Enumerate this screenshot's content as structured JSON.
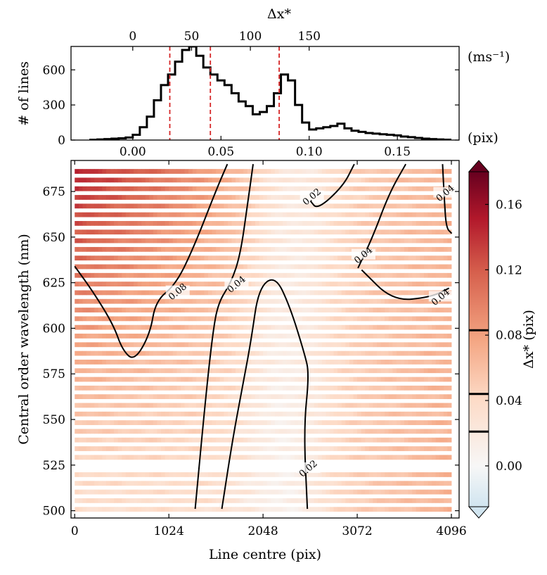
{
  "chart_data": [
    {
      "type": "histogram",
      "name": "line-offset-histogram",
      "xlabel_bottom": "(pix)",
      "xlabel_top": "Δx*",
      "top_unit": "(ms⁻¹)",
      "ylabel": "# of lines",
      "xlim": [
        -0.035,
        0.185
      ],
      "ylim": [
        0,
        800
      ],
      "yticks": [
        0,
        300,
        600
      ],
      "xticks": [
        0.0,
        0.05,
        0.1,
        0.15
      ],
      "xtick_labels": [
        "0.00",
        "0.05",
        "0.10",
        "0.15"
      ],
      "top_ticks_ms": [
        0,
        50,
        100,
        150
      ],
      "ms_per_pix": 1500,
      "bin_width": 0.004,
      "bin_start": -0.024,
      "counts": [
        2,
        5,
        8,
        12,
        15,
        22,
        45,
        110,
        200,
        340,
        470,
        560,
        670,
        770,
        800,
        720,
        620,
        560,
        510,
        470,
        400,
        330,
        290,
        220,
        240,
        290,
        400,
        560,
        510,
        300,
        150,
        90,
        100,
        110,
        120,
        140,
        100,
        80,
        70,
        60,
        55,
        50,
        45,
        40,
        30,
        25,
        18,
        12,
        8,
        5,
        3
      ],
      "vlines": [
        0.021,
        0.044,
        0.083
      ]
    },
    {
      "type": "heatmap",
      "name": "offset-map",
      "xlabel": "Line centre (pix)",
      "ylabel": "Central order wavelength (nm)",
      "xlim": [
        -40,
        4180
      ],
      "ylim": [
        496,
        692
      ],
      "xticks": [
        0,
        1024,
        2048,
        3072,
        4096
      ],
      "yticks": [
        500,
        525,
        550,
        575,
        600,
        625,
        650,
        675
      ],
      "contours": [
        {
          "label": "0.08",
          "label_at": [
            1120,
            620
          ],
          "points": [
            [
              0,
              634
            ],
            [
              200,
              620
            ],
            [
              420,
              602
            ],
            [
              520,
              588
            ],
            [
              650,
              582
            ],
            [
              820,
              597
            ],
            [
              880,
              615
            ],
            [
              1100,
              624
            ],
            [
              1300,
              645
            ],
            [
              1540,
              676
            ],
            [
              1660,
              690
            ]
          ]
        },
        {
          "label": "0.04",
          "label_at": [
            1760,
            624
          ],
          "points": [
            [
              1310,
              501
            ],
            [
              1420,
              560
            ],
            [
              1500,
              597
            ],
            [
              1560,
              614
            ],
            [
              1700,
              625
            ],
            [
              1800,
              640
            ],
            [
              1880,
              668
            ],
            [
              1940,
              690
            ]
          ]
        },
        {
          "label": "0.02",
          "label_at": [
            2540,
            523
          ],
          "points": [
            [
              1600,
              501
            ],
            [
              1720,
              540
            ],
            [
              1840,
              572
            ],
            [
              1920,
              594
            ],
            [
              2000,
              622
            ],
            [
              2180,
              629
            ],
            [
              2340,
              612
            ],
            [
              2500,
              586
            ],
            [
              2550,
              575
            ],
            [
              2490,
              545
            ],
            [
              2530,
              501
            ]
          ]
        },
        {
          "label": "0.02",
          "label_at": [
            2580,
            672
          ],
          "points": [
            [
              2560,
              670
            ],
            [
              2640,
              665
            ],
            [
              2920,
              678
            ],
            [
              3040,
              690
            ]
          ]
        },
        {
          "label": "0.04",
          "label_at": [
            3980,
            617
          ],
          "points": [
            [
              3120,
              632
            ],
            [
              3460,
              615
            ],
            [
              3870,
              617
            ],
            [
              4070,
              622
            ]
          ]
        },
        {
          "label": "0.04",
          "label_at": [
            3140,
            640
          ],
          "points": [
            [
              3080,
              633
            ],
            [
              3240,
              650
            ],
            [
              3420,
              674
            ],
            [
              3600,
              690
            ]
          ]
        },
        {
          "label": "0.04",
          "label_at": [
            4030,
            674
          ],
          "points": [
            [
              4000,
              690
            ],
            [
              4020,
              670
            ],
            [
              4040,
              655
            ],
            [
              4100,
              652
            ]
          ]
        }
      ],
      "colorbar": {
        "label": "Δx* (pix)",
        "ticks": [
          0.0,
          0.04,
          0.08,
          0.12,
          0.16
        ],
        "tick_labels": [
          "0.00",
          "0.04",
          "0.08",
          "0.12",
          "0.16"
        ],
        "range": [
          -0.025,
          0.18
        ],
        "level_lines": [
          0.021,
          0.044,
          0.083
        ]
      }
    }
  ]
}
